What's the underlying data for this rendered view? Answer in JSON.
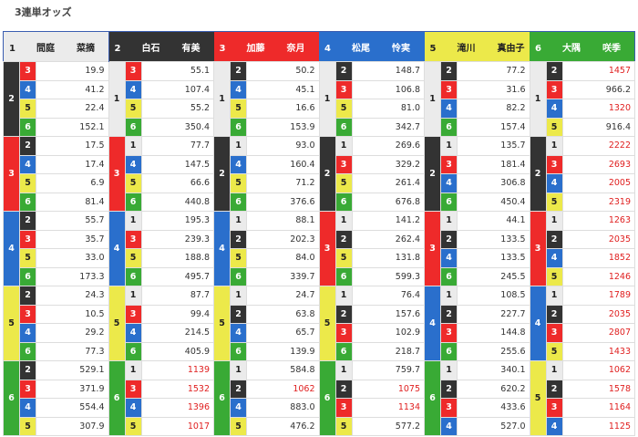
{
  "title": "3連単オッズ",
  "colors": {
    "1": "#ebebeb",
    "2": "#333333",
    "3": "#ee2a2a",
    "4": "#2a6fcc",
    "5": "#ece94a",
    "6": "#39aa35",
    "high_odds": "#e02020"
  },
  "groups": [
    {
      "num": "1",
      "surname": "間庭",
      "given": "菜摘",
      "blocks": [
        {
          "second": "2",
          "rows": [
            [
              "3",
              "19.9"
            ],
            [
              "4",
              "41.2"
            ],
            [
              "5",
              "22.4"
            ],
            [
              "6",
              "152.1"
            ]
          ]
        },
        {
          "second": "3",
          "rows": [
            [
              "2",
              "17.5"
            ],
            [
              "4",
              "17.4"
            ],
            [
              "5",
              "6.9"
            ],
            [
              "6",
              "81.4"
            ]
          ]
        },
        {
          "second": "4",
          "rows": [
            [
              "2",
              "55.7"
            ],
            [
              "3",
              "35.7"
            ],
            [
              "5",
              "33.0"
            ],
            [
              "6",
              "173.3"
            ]
          ]
        },
        {
          "second": "5",
          "rows": [
            [
              "2",
              "24.3"
            ],
            [
              "3",
              "10.5"
            ],
            [
              "4",
              "29.2"
            ],
            [
              "6",
              "77.3"
            ]
          ]
        },
        {
          "second": "6",
          "rows": [
            [
              "2",
              "529.1"
            ],
            [
              "3",
              "371.9"
            ],
            [
              "4",
              "554.4"
            ],
            [
              "5",
              "307.9"
            ]
          ]
        }
      ]
    },
    {
      "num": "2",
      "surname": "白石",
      "given": "有美",
      "blocks": [
        {
          "second": "1",
          "rows": [
            [
              "3",
              "55.1"
            ],
            [
              "4",
              "107.4"
            ],
            [
              "5",
              "55.2"
            ],
            [
              "6",
              "350.4"
            ]
          ]
        },
        {
          "second": "3",
          "rows": [
            [
              "1",
              "77.7"
            ],
            [
              "4",
              "147.5"
            ],
            [
              "5",
              "66.6"
            ],
            [
              "6",
              "440.8"
            ]
          ]
        },
        {
          "second": "4",
          "rows": [
            [
              "1",
              "195.3"
            ],
            [
              "3",
              "239.3"
            ],
            [
              "5",
              "188.8"
            ],
            [
              "6",
              "495.7"
            ]
          ]
        },
        {
          "second": "5",
          "rows": [
            [
              "1",
              "87.7"
            ],
            [
              "3",
              "99.4"
            ],
            [
              "4",
              "214.5"
            ],
            [
              "6",
              "405.9"
            ]
          ]
        },
        {
          "second": "6",
          "rows": [
            [
              "1",
              "1139"
            ],
            [
              "3",
              "1532"
            ],
            [
              "4",
              "1396"
            ],
            [
              "5",
              "1017"
            ]
          ]
        }
      ]
    },
    {
      "num": "3",
      "surname": "加藤",
      "given": "奈月",
      "blocks": [
        {
          "second": "1",
          "rows": [
            [
              "2",
              "50.2"
            ],
            [
              "4",
              "45.1"
            ],
            [
              "5",
              "16.6"
            ],
            [
              "6",
              "153.9"
            ]
          ]
        },
        {
          "second": "2",
          "rows": [
            [
              "1",
              "93.0"
            ],
            [
              "4",
              "160.4"
            ],
            [
              "5",
              "71.2"
            ],
            [
              "6",
              "376.6"
            ]
          ]
        },
        {
          "second": "4",
          "rows": [
            [
              "1",
              "88.1"
            ],
            [
              "2",
              "202.3"
            ],
            [
              "5",
              "84.0"
            ],
            [
              "6",
              "339.7"
            ]
          ]
        },
        {
          "second": "5",
          "rows": [
            [
              "1",
              "24.7"
            ],
            [
              "2",
              "63.8"
            ],
            [
              "4",
              "65.7"
            ],
            [
              "6",
              "139.9"
            ]
          ]
        },
        {
          "second": "6",
          "rows": [
            [
              "1",
              "584.8"
            ],
            [
              "2",
              "1062"
            ],
            [
              "4",
              "883.0"
            ],
            [
              "5",
              "476.2"
            ]
          ]
        }
      ]
    },
    {
      "num": "4",
      "surname": "松尾",
      "given": "怜実",
      "blocks": [
        {
          "second": "1",
          "rows": [
            [
              "2",
              "148.7"
            ],
            [
              "3",
              "106.8"
            ],
            [
              "5",
              "81.0"
            ],
            [
              "6",
              "342.7"
            ]
          ]
        },
        {
          "second": "2",
          "rows": [
            [
              "1",
              "269.6"
            ],
            [
              "3",
              "329.2"
            ],
            [
              "5",
              "261.4"
            ],
            [
              "6",
              "676.8"
            ]
          ]
        },
        {
          "second": "3",
          "rows": [
            [
              "1",
              "141.2"
            ],
            [
              "2",
              "262.4"
            ],
            [
              "5",
              "131.8"
            ],
            [
              "6",
              "599.3"
            ]
          ]
        },
        {
          "second": "5",
          "rows": [
            [
              "1",
              "76.4"
            ],
            [
              "2",
              "157.6"
            ],
            [
              "3",
              "102.9"
            ],
            [
              "6",
              "218.7"
            ]
          ]
        },
        {
          "second": "6",
          "rows": [
            [
              "1",
              "759.7"
            ],
            [
              "2",
              "1075"
            ],
            [
              "3",
              "1134"
            ],
            [
              "5",
              "577.2"
            ]
          ]
        }
      ]
    },
    {
      "num": "5",
      "surname": "滝川",
      "given": "真由子",
      "blocks": [
        {
          "second": "1",
          "rows": [
            [
              "2",
              "77.2"
            ],
            [
              "3",
              "31.6"
            ],
            [
              "4",
              "82.2"
            ],
            [
              "6",
              "157.4"
            ]
          ]
        },
        {
          "second": "2",
          "rows": [
            [
              "1",
              "135.7"
            ],
            [
              "3",
              "181.4"
            ],
            [
              "4",
              "306.8"
            ],
            [
              "6",
              "450.4"
            ]
          ]
        },
        {
          "second": "3",
          "rows": [
            [
              "1",
              "44.1"
            ],
            [
              "2",
              "133.5"
            ],
            [
              "4",
              "133.5"
            ],
            [
              "6",
              "245.5"
            ]
          ]
        },
        {
          "second": "4",
          "rows": [
            [
              "1",
              "108.5"
            ],
            [
              "2",
              "227.7"
            ],
            [
              "3",
              "144.8"
            ],
            [
              "6",
              "255.6"
            ]
          ]
        },
        {
          "second": "6",
          "rows": [
            [
              "1",
              "340.1"
            ],
            [
              "2",
              "620.2"
            ],
            [
              "3",
              "433.6"
            ],
            [
              "4",
              "527.0"
            ]
          ]
        }
      ]
    },
    {
      "num": "6",
      "surname": "大隅",
      "given": "咲季",
      "blocks": [
        {
          "second": "1",
          "rows": [
            [
              "2",
              "1457"
            ],
            [
              "3",
              "966.2"
            ],
            [
              "4",
              "1320"
            ],
            [
              "5",
              "916.4"
            ]
          ]
        },
        {
          "second": "2",
          "rows": [
            [
              "1",
              "2222"
            ],
            [
              "3",
              "2693"
            ],
            [
              "4",
              "2005"
            ],
            [
              "5",
              "2319"
            ]
          ]
        },
        {
          "second": "3",
          "rows": [
            [
              "1",
              "1263"
            ],
            [
              "2",
              "2035"
            ],
            [
              "4",
              "1852"
            ],
            [
              "5",
              "1246"
            ]
          ]
        },
        {
          "second": "4",
          "rows": [
            [
              "1",
              "1789"
            ],
            [
              "2",
              "2035"
            ],
            [
              "3",
              "2807"
            ],
            [
              "5",
              "1433"
            ]
          ]
        },
        {
          "second": "5",
          "rows": [
            [
              "1",
              "1062"
            ],
            [
              "2",
              "1578"
            ],
            [
              "3",
              "1164"
            ],
            [
              "4",
              "1125"
            ]
          ]
        }
      ]
    }
  ]
}
